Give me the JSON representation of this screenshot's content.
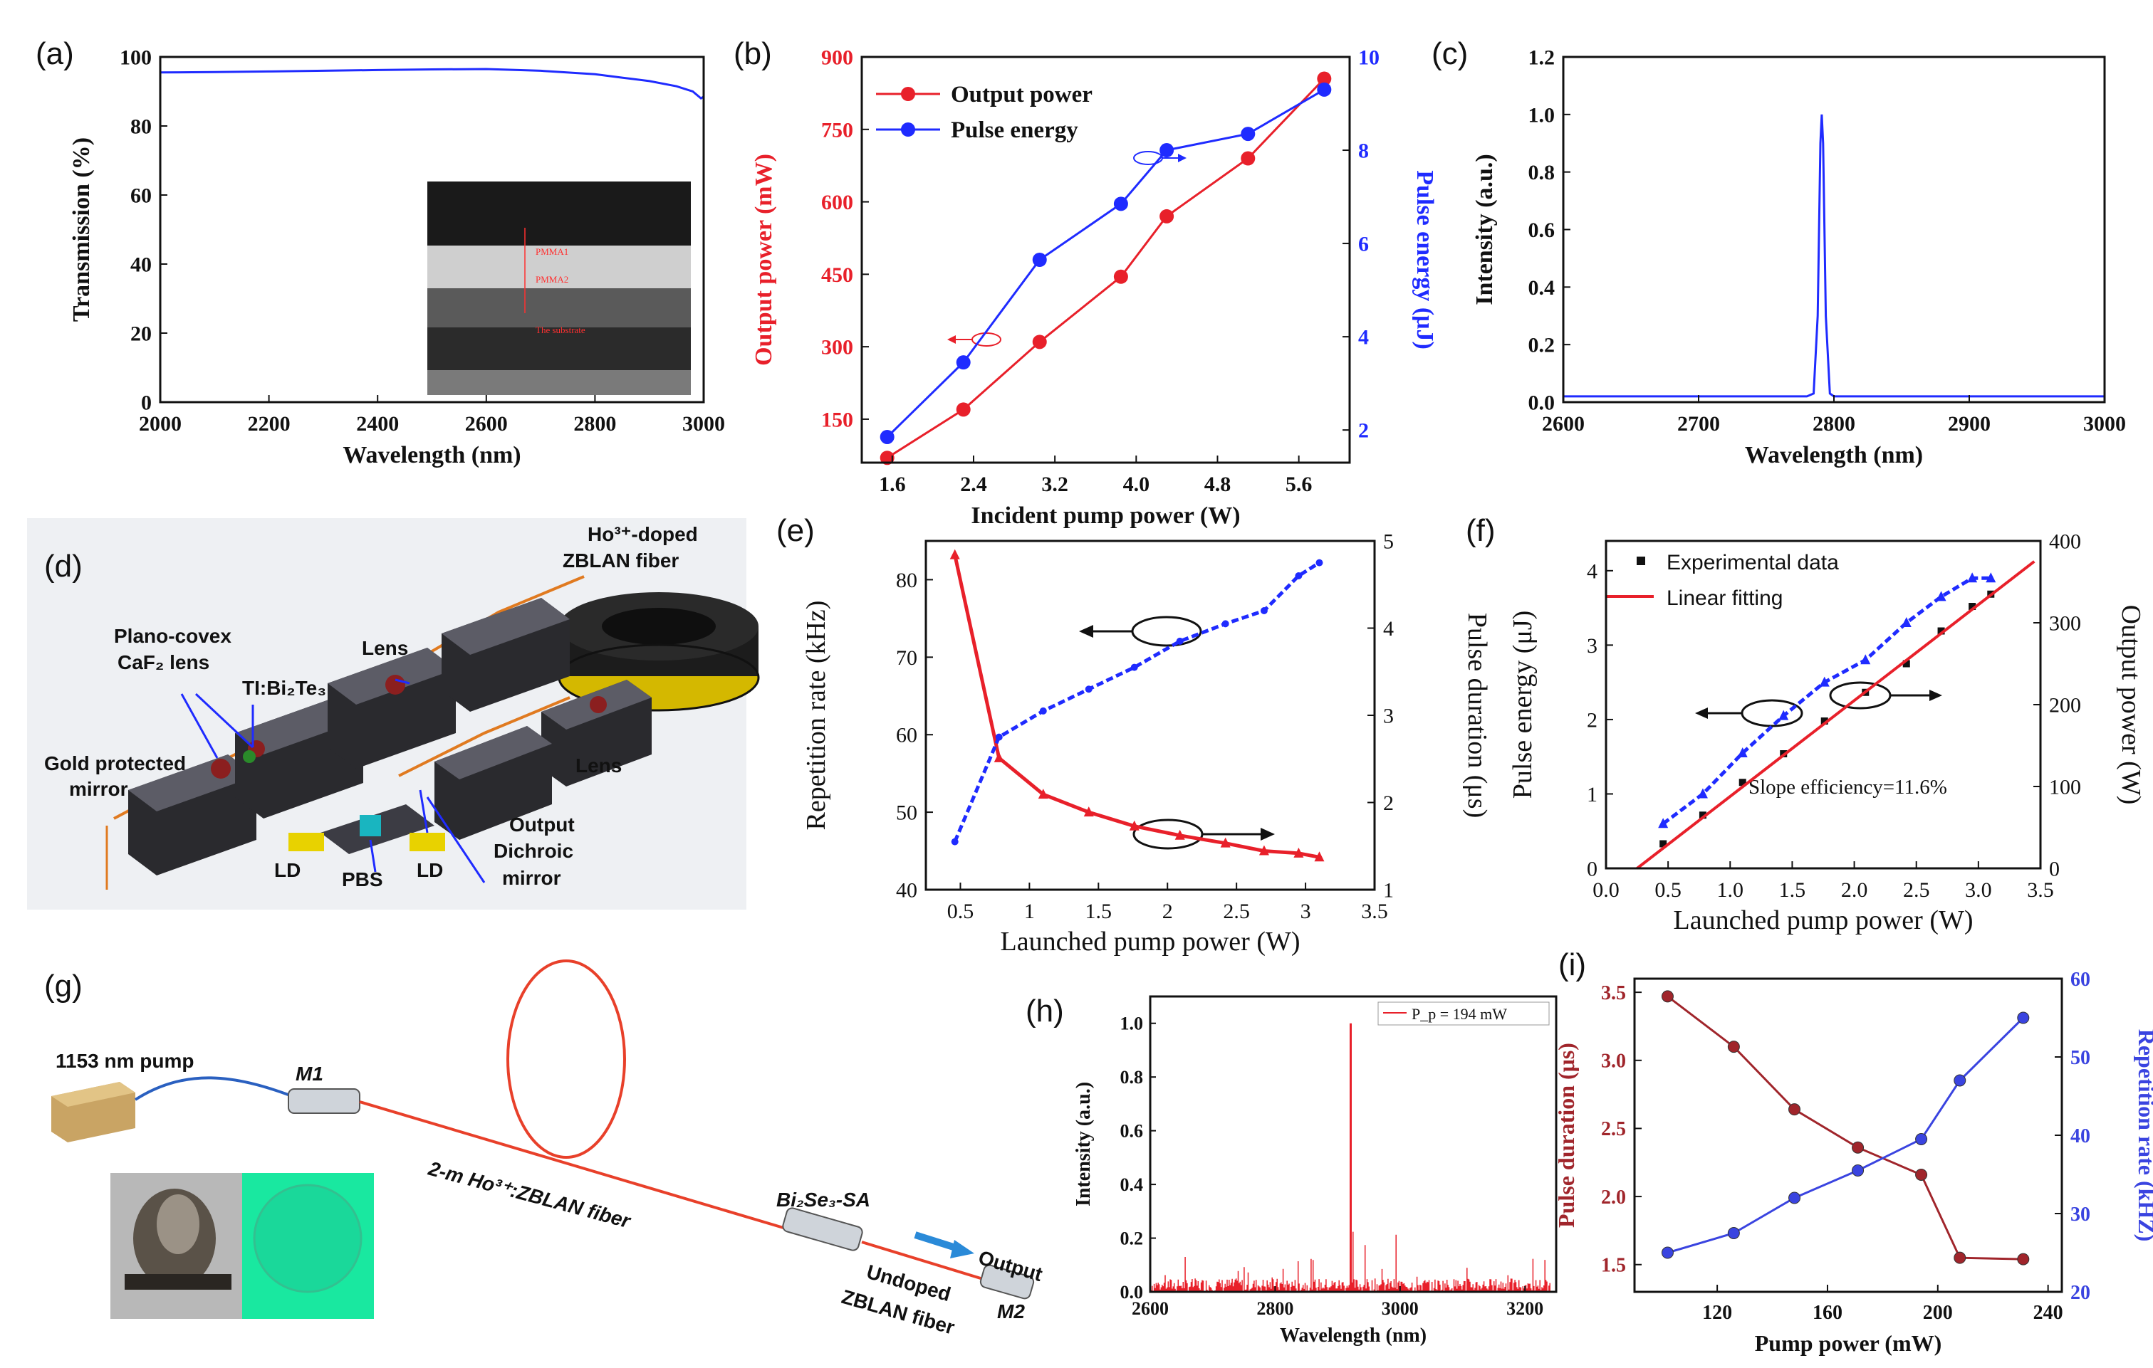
{
  "chart_data": [
    {
      "panel": "(a)",
      "type": "line",
      "xlabel": "Wavelength (nm)",
      "ylabel": "Transmission (%)",
      "xlim": [
        2000,
        3000
      ],
      "ylim": [
        0,
        100
      ],
      "xticks": [
        2000,
        2200,
        2400,
        2600,
        2800,
        3000
      ],
      "yticks": [
        0,
        20,
        40,
        60,
        80,
        100
      ],
      "series": [
        {
          "color": "#1f2bff",
          "x": [
            2000,
            2100,
            2200,
            2300,
            2400,
            2500,
            2600,
            2700,
            2800,
            2850,
            2900,
            2950,
            2980,
            2995,
            3000
          ],
          "y": [
            95.5,
            95.6,
            95.8,
            96.0,
            96.2,
            96.4,
            96.5,
            96.0,
            95.0,
            94.0,
            93.0,
            91.5,
            90.0,
            88.0,
            88.5
          ]
        }
      ],
      "inset_labels": [
        "PMMA1",
        "PMMA2",
        "The substrate"
      ]
    },
    {
      "panel": "(b)",
      "type": "line",
      "xlabel": "Incident pump power (W)",
      "ylabel": "Output power (mW)",
      "ylabel_right": "Pulse energy (μJ)",
      "xlim": [
        1.3,
        6.1
      ],
      "ylim": [
        60,
        900
      ],
      "ylim_right": [
        1.3,
        10
      ],
      "xticks": [
        1.6,
        2.4,
        3.2,
        4.0,
        4.8,
        5.6
      ],
      "yticks": [
        150,
        300,
        450,
        600,
        750,
        900
      ],
      "yticks_right": [
        2,
        4,
        6,
        8,
        10
      ],
      "legend": [
        "Output power",
        "Pulse energy"
      ],
      "legend_position": "top-left",
      "series": [
        {
          "name": "Output power",
          "color": "#e8202a",
          "axis": "left",
          "x": [
            1.55,
            2.3,
            3.05,
            3.85,
            4.3,
            5.1,
            5.85
          ],
          "y": [
            70,
            170,
            310,
            445,
            570,
            690,
            855
          ]
        },
        {
          "name": "Pulse energy",
          "color": "#1f2bff",
          "axis": "right",
          "x": [
            1.55,
            2.3,
            3.05,
            3.85,
            4.3,
            5.1,
            5.85
          ],
          "y": [
            1.85,
            3.45,
            5.65,
            6.85,
            8.0,
            8.35,
            9.3
          ]
        }
      ]
    },
    {
      "panel": "(c)",
      "type": "line",
      "xlabel": "Wavelength (nm)",
      "ylabel": "Intensity (a.u.)",
      "xlim": [
        2600,
        3000
      ],
      "ylim": [
        0,
        1.2
      ],
      "xticks": [
        2600,
        2700,
        2800,
        2900,
        3000
      ],
      "yticks": [
        0.0,
        0.2,
        0.4,
        0.6,
        0.8,
        1.0,
        1.2
      ],
      "series": [
        {
          "color": "#1f2bff",
          "x": [
            2600,
            2780,
            2785,
            2788,
            2790,
            2791,
            2792,
            2794,
            2797,
            2800,
            3000
          ],
          "y": [
            0.02,
            0.02,
            0.03,
            0.3,
            0.9,
            1.0,
            0.9,
            0.3,
            0.03,
            0.02,
            0.02
          ]
        }
      ]
    },
    {
      "panel": "(e)",
      "type": "line",
      "xlabel": "Launched pump power (W)",
      "ylabel": "Repetition rate (kHz)",
      "ylabel_right": "Pulse duration (μs)",
      "xlim": [
        0.25,
        3.5
      ],
      "ylim": [
        40,
        85
      ],
      "ylim_right": [
        1,
        5
      ],
      "xticks": [
        0.5,
        1.0,
        1.5,
        2.0,
        2.5,
        3.0,
        3.5
      ],
      "yticks": [
        40,
        50,
        60,
        70,
        80
      ],
      "yticks_right": [
        1,
        2,
        3,
        4,
        5
      ],
      "series": [
        {
          "color": "#e8202a",
          "axis": "left",
          "x": [
            0.46,
            0.78,
            1.1,
            1.43,
            1.76,
            2.09,
            2.42,
            2.7,
            2.95,
            3.1
          ],
          "y": [
            83.2,
            57.0,
            52.3,
            50.0,
            48.2,
            47.0,
            46.0,
            45.0,
            44.7,
            44.2
          ]
        },
        {
          "color": "#1f2bff",
          "axis": "right",
          "x": [
            0.46,
            0.78,
            1.1,
            1.43,
            1.76,
            2.09,
            2.42,
            2.7,
            2.95,
            3.1
          ],
          "y": [
            1.55,
            2.75,
            3.05,
            3.3,
            3.55,
            3.85,
            4.05,
            4.2,
            4.6,
            4.75
          ]
        }
      ]
    },
    {
      "panel": "(f)",
      "type": "line",
      "xlabel": "Launched pump power (W)",
      "ylabel": "Pulse energy (μJ)",
      "ylabel_right": "Output power (W)",
      "xlim": [
        0,
        3.5
      ],
      "ylim": [
        0,
        4.4
      ],
      "ylim_right": [
        0,
        400
      ],
      "xticks": [
        0.0,
        0.5,
        1.0,
        1.5,
        2.0,
        2.5,
        3.0,
        3.5
      ],
      "yticks": [
        0,
        1,
        2,
        3,
        4
      ],
      "yticks_right": [
        0,
        100,
        200,
        300,
        400
      ],
      "legend": [
        "Experimental data",
        "Linear fitting"
      ],
      "legend_position": "top-left",
      "annotations": [
        "Slope efficiency=11.6%"
      ],
      "series": [
        {
          "name": "Experimental data",
          "color": "#111111",
          "axis": "right",
          "x": [
            0.46,
            0.78,
            1.1,
            1.43,
            1.76,
            2.09,
            2.42,
            2.7,
            2.95,
            3.1
          ],
          "y": [
            30,
            65,
            105,
            140,
            180,
            215,
            250,
            290,
            320,
            335
          ]
        },
        {
          "name": "Linear fitting",
          "color": "#e8202a",
          "axis": "right",
          "x": [
            0.25,
            3.45
          ],
          "y": [
            0,
            375
          ]
        },
        {
          "color": "#1f2bff",
          "axis": "left",
          "x": [
            0.46,
            0.78,
            1.1,
            1.43,
            1.76,
            2.09,
            2.42,
            2.7,
            2.95,
            3.1
          ],
          "y": [
            0.6,
            1.0,
            1.55,
            2.05,
            2.5,
            2.8,
            3.3,
            3.65,
            3.9,
            3.9
          ]
        }
      ]
    },
    {
      "panel": "(h)",
      "type": "line",
      "xlabel": "Wavelength (nm)",
      "ylabel": "Intensity (a.u.)",
      "xlim": [
        2600,
        3250
      ],
      "ylim": [
        0,
        1.1
      ],
      "xticks": [
        2600,
        2800,
        3000,
        3200
      ],
      "yticks": [
        0.0,
        0.2,
        0.4,
        0.6,
        0.8,
        1.0
      ],
      "legend": [
        "P_p = 194 mW"
      ],
      "legend_position": "top-right",
      "series": [
        {
          "name": "P_p = 194 mW",
          "color": "#e8202a",
          "peak_x": 2921,
          "peak_y": 1.0
        }
      ]
    },
    {
      "panel": "(i)",
      "type": "line",
      "xlabel": "Pump power (mW)",
      "ylabel": "Pulse duration (μs)",
      "ylabel_right": "Repetition rate (kHZ)",
      "xlim": [
        90,
        245
      ],
      "ylim": [
        1.3,
        3.6
      ],
      "ylim_right": [
        20,
        60
      ],
      "xticks": [
        120,
        160,
        200,
        240
      ],
      "yticks": [
        1.5,
        2.0,
        2.5,
        3.0,
        3.5
      ],
      "yticks_right": [
        20,
        30,
        40,
        50,
        60
      ],
      "series": [
        {
          "color": "#a0252b",
          "axis": "left",
          "x": [
            102,
            126,
            148,
            171,
            194,
            208,
            231
          ],
          "y": [
            3.47,
            3.1,
            2.64,
            2.36,
            2.16,
            1.55,
            1.54
          ]
        },
        {
          "color": "#3a44e0",
          "axis": "right",
          "x": [
            102,
            126,
            148,
            171,
            194,
            208,
            231
          ],
          "y": [
            25,
            27.5,
            32,
            35.5,
            39.5,
            47,
            55
          ]
        }
      ]
    }
  ],
  "panel_labels": {
    "a": "(a)",
    "b": "(b)",
    "c": "(c)",
    "d": "(d)",
    "e": "(e)",
    "f": "(f)",
    "g": "(g)",
    "h": "(h)",
    "i": "(i)"
  },
  "diagram_d": {
    "labels": {
      "fiber": "Ho³⁺-doped",
      "fiber2": "ZBLAN fiber",
      "plano": "Plano-covex",
      "caf2": "CaF₂ lens",
      "ti": "TI:Bi₂Te₃",
      "lens1": "Lens",
      "lens2": "Lens",
      "gold1": "Gold protected",
      "gold2": "mirror",
      "output": "Output",
      "dichroic1": "Dichroic",
      "dichroic2": "mirror",
      "ld1": "LD",
      "pbs": "PBS",
      "ld2": "LD"
    }
  },
  "diagram_g": {
    "labels": {
      "pump": "1153 nm pump",
      "m1": "M1",
      "fiber": "2-m Ho³⁺:ZBLAN fiber",
      "sa": "Bi₂Se₃-SA",
      "output": "Output",
      "undoped1": "Undoped",
      "undoped2": "ZBLAN fiber",
      "m2": "M2"
    }
  }
}
